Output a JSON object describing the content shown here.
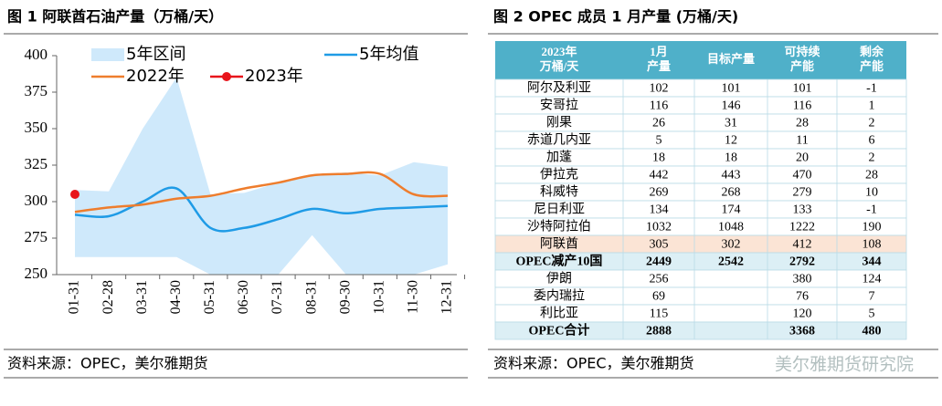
{
  "chart_data": {
    "type": "line",
    "title": "图 1  阿联酋石油产量（万桶/天）",
    "categories": [
      "01-31",
      "02-28",
      "03-31",
      "04-30",
      "05-31",
      "06-30",
      "07-31",
      "08-31",
      "09-30",
      "10-31",
      "11-30",
      "12-31"
    ],
    "range": {
      "name": "5年区间",
      "color": "#cfe9fb",
      "low": [
        262,
        262,
        262,
        262,
        250,
        250,
        250,
        277,
        250,
        250,
        250,
        257
      ],
      "high": [
        308,
        307,
        350,
        385,
        305,
        306,
        313,
        318,
        320,
        318,
        327,
        324
      ]
    },
    "series": [
      {
        "name": "5年均值",
        "color": "#1f9be6",
        "values": [
          291,
          290,
          300,
          309,
          282,
          282,
          288,
          295,
          292,
          295,
          296,
          297
        ]
      },
      {
        "name": "2022年",
        "color": "#ee7d2d",
        "values": [
          293,
          296,
          298,
          302,
          304,
          309,
          313,
          318,
          319,
          319,
          305,
          304
        ]
      },
      {
        "name": "2023年",
        "color": "#e8141b",
        "values": [
          305,
          null,
          null,
          null,
          null,
          null,
          null,
          null,
          null,
          null,
          null,
          null
        ]
      }
    ],
    "ylim": [
      250,
      400
    ],
    "yticks": [
      250,
      275,
      300,
      325,
      350,
      375,
      400
    ],
    "source": "资料来源：OPEC，美尔雅期货"
  },
  "table_figure": {
    "title": "图 2 OPEC 成员 1 月产量 (万桶/天)",
    "header": [
      [
        "2023年",
        "万桶/天"
      ],
      [
        "1月",
        "产量"
      ],
      [
        "目标产量"
      ],
      [
        "可持续",
        "产能"
      ],
      [
        "剩余",
        "产能"
      ]
    ],
    "rows": [
      [
        "阿尔及利亚",
        102,
        101,
        101,
        -1
      ],
      [
        "安哥拉",
        116,
        146,
        116,
        1
      ],
      [
        "刚果",
        26,
        31,
        28,
        2
      ],
      [
        "赤道几内亚",
        5,
        12,
        11,
        6
      ],
      [
        "加蓬",
        18,
        18,
        20,
        2
      ],
      [
        "伊拉克",
        442,
        443,
        470,
        28
      ],
      [
        "科威特",
        269,
        268,
        279,
        10
      ],
      [
        "尼日利亚",
        134,
        174,
        133,
        -1
      ],
      [
        "沙特阿拉伯",
        1032,
        1048,
        1222,
        190
      ],
      [
        "阿联酋",
        305,
        302,
        412,
        108
      ],
      [
        "OPEC减产10国",
        2449,
        2542,
        2792,
        344
      ],
      [
        "伊朗",
        256,
        null,
        380,
        124
      ],
      [
        "委内瑞拉",
        69,
        null,
        76,
        7
      ],
      [
        "利比亚",
        115,
        null,
        120,
        5
      ],
      [
        "OPEC合计",
        2888,
        null,
        3368,
        480
      ]
    ],
    "source": "资料来源：OPEC，美尔雅期货",
    "watermark": "美尔雅期货研究院"
  }
}
